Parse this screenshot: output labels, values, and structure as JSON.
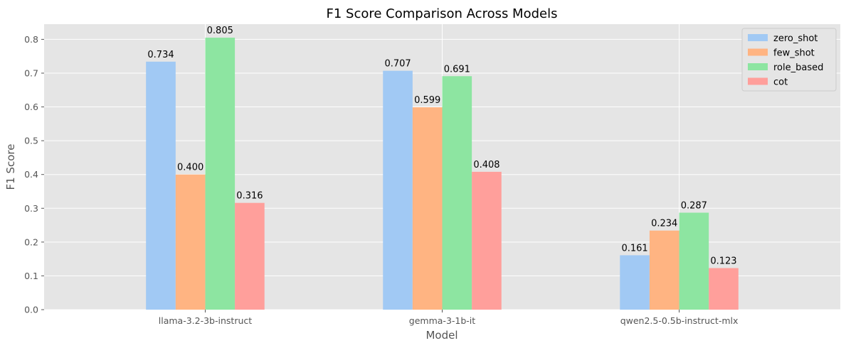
{
  "chart_data": {
    "type": "bar",
    "title": "F1 Score Comparison Across Models",
    "xlabel": "Model",
    "ylabel": "F1 Score",
    "categories": [
      "llama-3.2-3b-instruct",
      "gemma-3-1b-it",
      "qwen2.5-0.5b-instruct-mlx"
    ],
    "series": [
      {
        "name": "zero_shot",
        "color": "#a1c9f4",
        "values": [
          0.734,
          0.707,
          0.161
        ],
        "labels": [
          "0.734",
          "0.707",
          "0.161"
        ]
      },
      {
        "name": "few_shot",
        "color": "#ffb482",
        "values": [
          0.4,
          0.599,
          0.234
        ],
        "labels": [
          "0.400",
          "0.599",
          "0.234"
        ]
      },
      {
        "name": "role_based",
        "color": "#8de5a1",
        "values": [
          0.805,
          0.691,
          0.287
        ],
        "labels": [
          "0.805",
          "0.691",
          "0.287"
        ]
      },
      {
        "name": "cot",
        "color": "#ff9f9b",
        "values": [
          0.316,
          0.408,
          0.123
        ],
        "labels": [
          "0.316",
          "0.408",
          "0.123"
        ]
      }
    ],
    "ylim": [
      0,
      0.845
    ],
    "yticks": [
      0.0,
      0.1,
      0.2,
      0.3,
      0.4,
      0.5,
      0.6,
      0.7,
      0.8
    ],
    "ytick_labels": [
      "0.0",
      "0.1",
      "0.2",
      "0.3",
      "0.4",
      "0.5",
      "0.6",
      "0.7",
      "0.8"
    ],
    "grid": true,
    "legend_position": "top-right",
    "background_color": "#e5e5e5"
  }
}
